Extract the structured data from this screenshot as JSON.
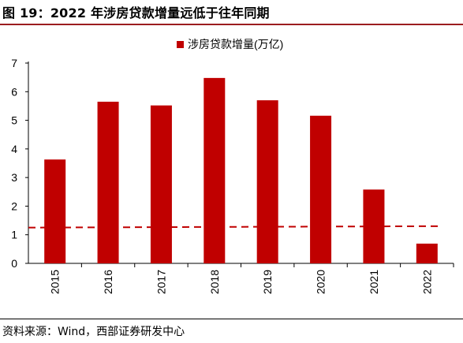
{
  "header": {
    "title": "图 19：2022 年涉房贷款增量远低于往年同期"
  },
  "footer": {
    "source": "资料来源：Wind，西部证券研发中心"
  },
  "colors": {
    "bar": "#c00000",
    "reference_line": "#c00000",
    "title_rule": "#9b1c1f"
  },
  "chart_data": {
    "type": "bar",
    "categories": [
      "2015",
      "2016",
      "2017",
      "2018",
      "2019",
      "2020",
      "2021",
      "2022"
    ],
    "series": [
      {
        "name": "涉房贷款增量(万亿)",
        "values": [
          3.63,
          5.65,
          5.52,
          6.48,
          5.7,
          5.16,
          2.58,
          0.69
        ]
      }
    ],
    "reference_line": {
      "style": "dashed",
      "from": 1.25,
      "to": 1.3
    },
    "yticks": [
      "0",
      "1",
      "2",
      "3",
      "4",
      "5",
      "6",
      "7"
    ],
    "ylim": [
      0,
      7
    ],
    "grid": false,
    "legend": "top-center"
  }
}
